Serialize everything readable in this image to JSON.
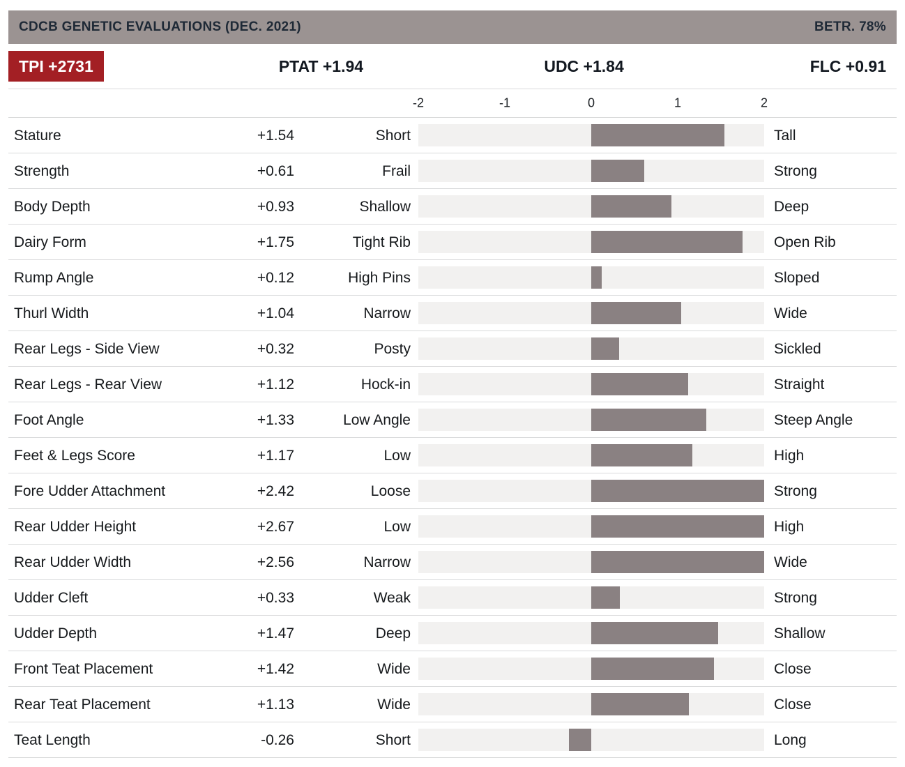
{
  "header": {
    "title": "CDCB GENETIC EVALUATIONS (DEC. 2021)",
    "reliability": "BETR. 78%"
  },
  "summary": {
    "tpi": "TPI +2731",
    "ptat": "PTAT +1.94",
    "udc": "UDC +1.84",
    "flc": "FLC +0.91"
  },
  "colors": {
    "accent_red": "#A31F24",
    "header_gray": "#9B9392",
    "header_text": "#1E2936",
    "bar_fill": "#8A8182",
    "bar_track": "#F2F1F0",
    "divider": "#D9DADB"
  },
  "chart_data": {
    "type": "bar",
    "orientation": "horizontal",
    "title": "CDCB GENETIC EVALUATIONS (DEC. 2021)",
    "xlim": [
      -2,
      2
    ],
    "ticks": [
      "-2",
      "-1",
      "0",
      "1",
      "2"
    ],
    "grid": false,
    "rows": [
      {
        "trait": "Stature",
        "value": 1.54,
        "display": "+1.54",
        "low": "Short",
        "high": "Tall"
      },
      {
        "trait": "Strength",
        "value": 0.61,
        "display": "+0.61",
        "low": "Frail",
        "high": "Strong"
      },
      {
        "trait": "Body Depth",
        "value": 0.93,
        "display": "+0.93",
        "low": "Shallow",
        "high": "Deep"
      },
      {
        "trait": "Dairy Form",
        "value": 1.75,
        "display": "+1.75",
        "low": "Tight Rib",
        "high": "Open Rib"
      },
      {
        "trait": "Rump Angle",
        "value": 0.12,
        "display": "+0.12",
        "low": "High Pins",
        "high": "Sloped"
      },
      {
        "trait": "Thurl Width",
        "value": 1.04,
        "display": "+1.04",
        "low": "Narrow",
        "high": "Wide"
      },
      {
        "trait": "Rear Legs - Side View",
        "value": 0.32,
        "display": "+0.32",
        "low": "Posty",
        "high": "Sickled"
      },
      {
        "trait": "Rear Legs - Rear View",
        "value": 1.12,
        "display": "+1.12",
        "low": "Hock-in",
        "high": "Straight"
      },
      {
        "trait": "Foot Angle",
        "value": 1.33,
        "display": "+1.33",
        "low": "Low Angle",
        "high": "Steep Angle"
      },
      {
        "trait": "Feet & Legs Score",
        "value": 1.17,
        "display": "+1.17",
        "low": "Low",
        "high": "High"
      },
      {
        "trait": "Fore Udder Attachment",
        "value": 2.42,
        "display": "+2.42",
        "low": "Loose",
        "high": "Strong"
      },
      {
        "trait": "Rear Udder Height",
        "value": 2.67,
        "display": "+2.67",
        "low": "Low",
        "high": "High"
      },
      {
        "trait": "Rear Udder Width",
        "value": 2.56,
        "display": "+2.56",
        "low": "Narrow",
        "high": "Wide"
      },
      {
        "trait": "Udder Cleft",
        "value": 0.33,
        "display": "+0.33",
        "low": "Weak",
        "high": "Strong"
      },
      {
        "trait": "Udder Depth",
        "value": 1.47,
        "display": "+1.47",
        "low": "Deep",
        "high": "Shallow"
      },
      {
        "trait": "Front Teat Placement",
        "value": 1.42,
        "display": "+1.42",
        "low": "Wide",
        "high": "Close"
      },
      {
        "trait": "Rear Teat Placement",
        "value": 1.13,
        "display": "+1.13",
        "low": "Wide",
        "high": "Close"
      },
      {
        "trait": "Teat Length",
        "value": -0.26,
        "display": "-0.26",
        "low": "Short",
        "high": "Long"
      }
    ]
  }
}
